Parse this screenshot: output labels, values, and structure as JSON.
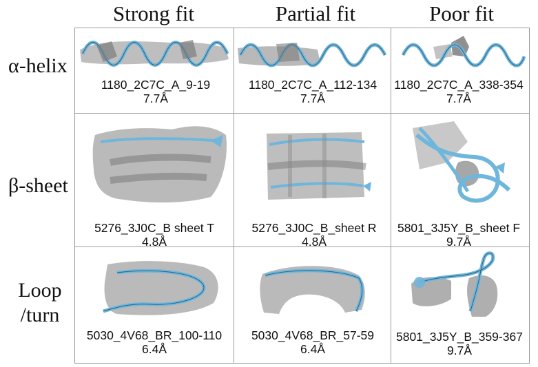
{
  "columns": [
    "Strong fit",
    "Partial fit",
    "Poor fit"
  ],
  "rows": [
    {
      "label_lines": [
        "α-helix"
      ],
      "cells": [
        {
          "name": "1180_2C7C_A_9-19",
          "resolution": "7.7Å"
        },
        {
          "name": "1180_2C7C_A_112-134",
          "resolution": "7.7Å"
        },
        {
          "name": "1180_2C7C_A_338-354",
          "resolution": "7.7Å"
        }
      ]
    },
    {
      "label_lines": [
        "β-sheet"
      ],
      "cells": [
        {
          "name": "5276_3J0C_B sheet T",
          "resolution": "4.8Å"
        },
        {
          "name": "5276_3J0C_B_sheet R",
          "resolution": "4.8Å"
        },
        {
          "name": "5801_3J5Y_B_sheet F",
          "resolution": "9.7Å"
        }
      ]
    },
    {
      "label_lines": [
        "Loop",
        "/turn"
      ],
      "cells": [
        {
          "name": "5030_4V68_BR_100-110",
          "resolution": "6.4Å"
        },
        {
          "name": "5030_4V68_BR_57-59",
          "resolution": "6.4Å"
        },
        {
          "name": "5801_3J5Y_B_359-367",
          "resolution": "9.7Å"
        }
      ]
    }
  ],
  "colors": {
    "density": "#9b9b9b",
    "ribbon": "#6fb6dc",
    "grid_line": "#9a9a9a"
  }
}
